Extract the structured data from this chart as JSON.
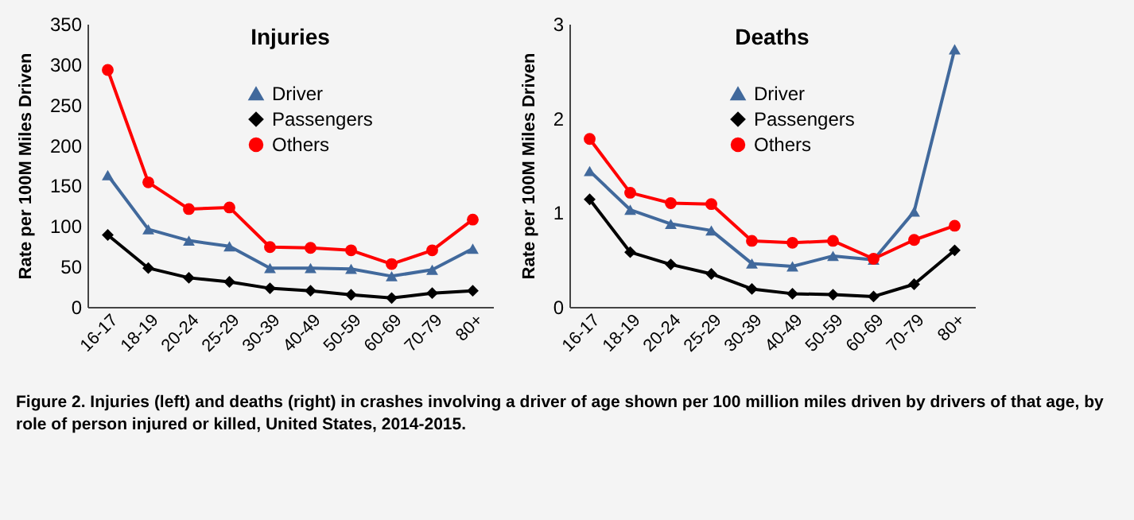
{
  "chart_data": [
    {
      "type": "line",
      "title": "Injuries",
      "ylabel": "Rate per 100M Miles Driven",
      "categories": [
        "16-17",
        "18-19",
        "20-24",
        "25-29",
        "30-39",
        "40-49",
        "50-59",
        "60-69",
        "70-79",
        "80+"
      ],
      "ylim": [
        0,
        350
      ],
      "yticks": [
        0,
        50,
        100,
        150,
        200,
        250,
        300,
        350
      ],
      "grid": false,
      "legend": "top right",
      "line_style": "solid",
      "series": [
        {
          "name": "Driver",
          "color": "#41699c",
          "marker": "triangle",
          "values": [
            163,
            96,
            82,
            75,
            48,
            48,
            47,
            38,
            46,
            72
          ]
        },
        {
          "name": "Passengers",
          "color": "#000000",
          "marker": "diamond",
          "values": [
            89,
            48,
            36,
            31,
            23,
            20,
            15,
            11,
            17,
            20
          ]
        },
        {
          "name": "Others",
          "color": "#ff0000",
          "marker": "circle",
          "values": [
            293,
            154,
            121,
            123,
            74,
            73,
            70,
            53,
            70,
            108
          ]
        }
      ],
      "annotations": [
        "Figure 2. Injuries (left) and deaths (right) in crashes involving a driver of age shown per 100 million miles driven by drivers of that age, by role of person injured or killed, United States, 2014-2015."
      ]
    },
    {
      "type": "line",
      "title": "Deaths",
      "ylabel": "Rate per 100M Miles Driven",
      "categories": [
        "16-17",
        "18-19",
        "20-24",
        "25-29",
        "30-39",
        "40-49",
        "50-59",
        "60-69",
        "70-79",
        "80+"
      ],
      "ylim": [
        0,
        3
      ],
      "yticks": [
        0,
        1,
        2,
        3
      ],
      "grid": false,
      "legend": "top right",
      "line_style": "solid",
      "series": [
        {
          "name": "Driver",
          "color": "#41699c",
          "marker": "triangle",
          "values": [
            1.44,
            1.03,
            0.88,
            0.81,
            0.46,
            0.43,
            0.54,
            0.5,
            1.01,
            2.73
          ]
        },
        {
          "name": "Passengers",
          "color": "#000000",
          "marker": "diamond",
          "values": [
            1.14,
            0.58,
            0.45,
            0.35,
            0.19,
            0.14,
            0.13,
            0.11,
            0.24,
            0.6
          ]
        },
        {
          "name": "Others",
          "color": "#ff0000",
          "marker": "circle",
          "values": [
            1.78,
            1.21,
            1.1,
            1.09,
            0.7,
            0.68,
            0.7,
            0.51,
            0.71,
            0.86
          ]
        }
      ]
    }
  ]
}
